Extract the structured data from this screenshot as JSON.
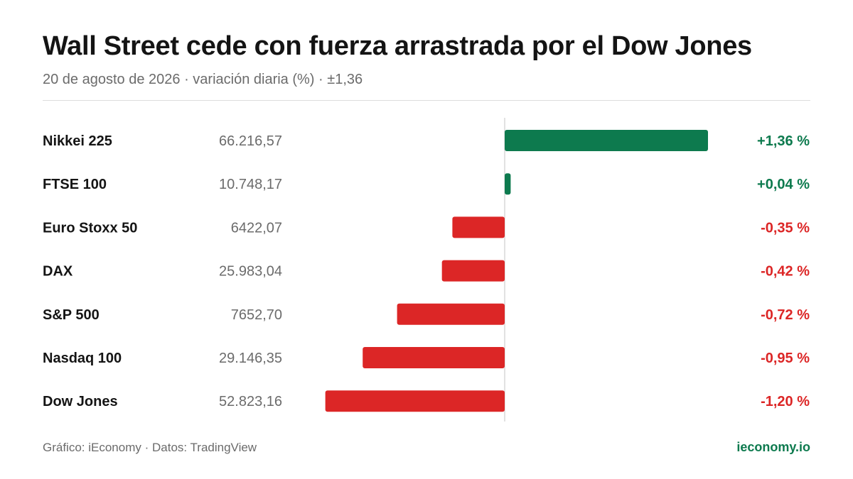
{
  "header": {
    "title": "Wall Street cede con fuerza arrastrada por el Dow Jones",
    "subtitle": "20 de agosto de 2026 · variación diaria (%) · ±1,36"
  },
  "footer": {
    "source": "Gráfico: iEconomy · Datos: TradingView",
    "brand": "ieconomy.io"
  },
  "colors": {
    "positive": "#0d7a4e",
    "negative": "#dc2626",
    "axis": "#d9d9d9"
  },
  "chart_data": {
    "type": "bar",
    "orientation": "horizontal",
    "title": "Wall Street cede con fuerza arrastrada por el Dow Jones",
    "subtitle": "20 de agosto de 2026 · variación diaria (%) · ±1,36",
    "xlim": [
      -1.36,
      1.36
    ],
    "categories": [
      "Nikkei 225",
      "FTSE 100",
      "Euro Stoxx 50",
      "DAX",
      "S&P 500",
      "Nasdaq 100",
      "Dow Jones"
    ],
    "levels": [
      "66.216,57",
      "10.748,17",
      "6422,07",
      "25.983,04",
      "7652,70",
      "29.146,35",
      "52.823,16"
    ],
    "values": [
      1.36,
      0.04,
      -0.35,
      -0.42,
      -0.72,
      -0.95,
      -1.2
    ],
    "value_labels": [
      "+1,36 %",
      "+0,04 %",
      "-0,35 %",
      "-0,42 %",
      "-0,72 %",
      "-0,95 %",
      "-1,20 %"
    ]
  }
}
